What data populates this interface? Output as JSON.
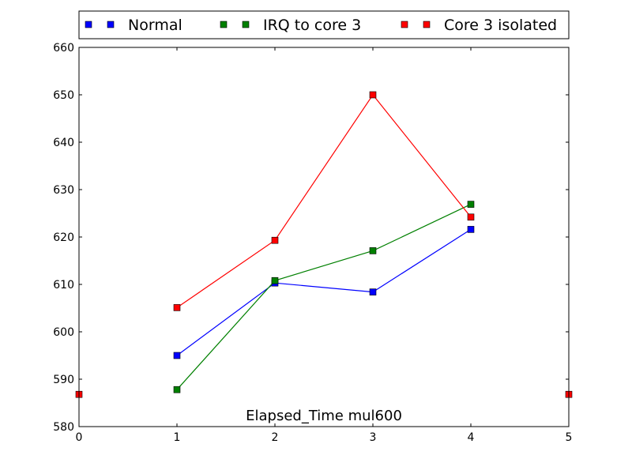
{
  "chart_data": {
    "type": "line",
    "title": "",
    "xlabel": "",
    "ylabel": "",
    "annotation": "Elapsed_Time mul600",
    "xlim": [
      0,
      5
    ],
    "ylim": [
      580,
      660
    ],
    "x_ticks": [
      0,
      1,
      2,
      3,
      4,
      5
    ],
    "y_ticks": [
      580,
      590,
      600,
      610,
      620,
      630,
      640,
      650,
      660
    ],
    "grid": false,
    "legend_position": "top",
    "series": [
      {
        "name": "Normal",
        "color": "#0000ff",
        "x": [
          1,
          2,
          3,
          4
        ],
        "values": [
          595.0,
          610.3,
          608.4,
          621.6
        ]
      },
      {
        "name": "IRQ to core 3",
        "color": "#008000",
        "x": [
          1,
          2,
          3,
          4
        ],
        "values": [
          587.8,
          610.8,
          617.1,
          626.9
        ]
      },
      {
        "name": "Core 3 isolated",
        "color": "#ff0000",
        "x": [
          1,
          2,
          3,
          4
        ],
        "values": [
          605.1,
          619.3,
          650.0,
          624.2
        ],
        "extra_markers": {
          "x": [
            0,
            5
          ],
          "values": [
            586.8,
            586.8
          ]
        }
      }
    ]
  }
}
